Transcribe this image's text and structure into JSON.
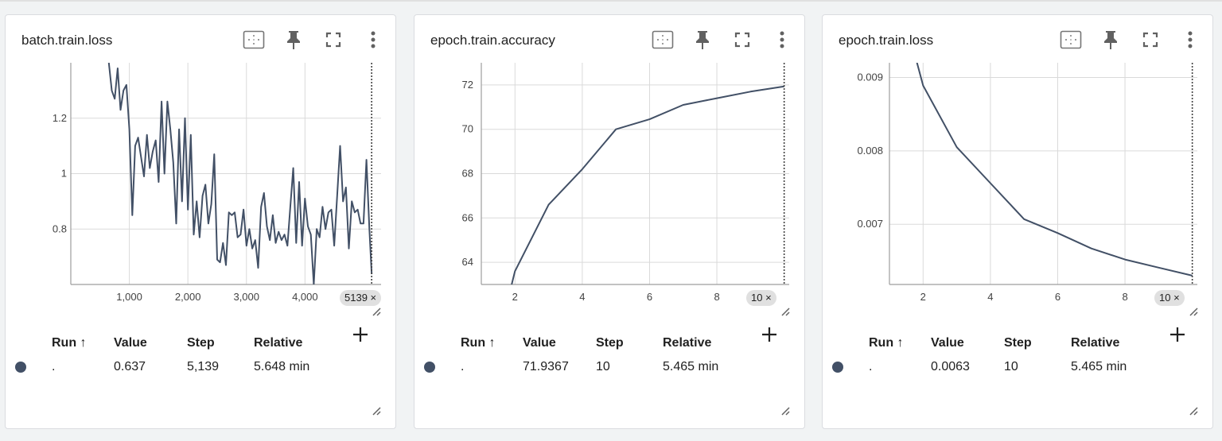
{
  "ui": {
    "step_chip_suffix": " ×",
    "table_headers": {
      "run": "Run ↑",
      "value": "Value",
      "step": "Step",
      "relative": "Relative"
    },
    "colors": {
      "line": "#425066",
      "grid": "#dadada",
      "axis": "#9e9e9e"
    },
    "icons": [
      "fit-domain-icon",
      "pin-icon",
      "fullscreen-icon",
      "more-vert-icon",
      "resize-icon",
      "add-icon"
    ]
  },
  "cards": [
    {
      "title": "batch.train.loss",
      "step_chip": "5139",
      "row": {
        "run": ".",
        "value": "0.637",
        "step": "5,139",
        "relative": "5.648 min"
      }
    },
    {
      "title": "epoch.train.accuracy",
      "step_chip": "10",
      "row": {
        "run": ".",
        "value": "71.9367",
        "step": "10",
        "relative": "5.465 min"
      }
    },
    {
      "title": "epoch.train.loss",
      "step_chip": "10",
      "row": {
        "run": ".",
        "value": "0.0063",
        "step": "10",
        "relative": "5.465 min"
      }
    }
  ],
  "chart_data": [
    {
      "type": "line",
      "title": "batch.train.loss",
      "xlim": [
        0,
        5300
      ],
      "ylim": [
        0.6,
        1.4
      ],
      "x_ticks": [
        1000,
        2000,
        3000,
        4000
      ],
      "x_tick_labels": [
        "1,000",
        "2,000",
        "3,000",
        "4,000"
      ],
      "y_ticks": [
        0.8,
        1.0,
        1.2
      ],
      "y_tick_labels": [
        "0.8",
        "1",
        "1.2"
      ],
      "x": [
        650,
        700,
        750,
        800,
        850,
        900,
        950,
        1000,
        1050,
        1100,
        1150,
        1200,
        1250,
        1300,
        1350,
        1400,
        1450,
        1500,
        1550,
        1600,
        1650,
        1700,
        1750,
        1800,
        1850,
        1900,
        1950,
        2000,
        2050,
        2100,
        2150,
        2200,
        2250,
        2300,
        2350,
        2400,
        2450,
        2500,
        2550,
        2600,
        2650,
        2700,
        2750,
        2800,
        2850,
        2900,
        2950,
        3000,
        3050,
        3100,
        3150,
        3200,
        3250,
        3300,
        3350,
        3400,
        3450,
        3500,
        3550,
        3600,
        3650,
        3700,
        3750,
        3800,
        3850,
        3900,
        3950,
        4000,
        4050,
        4100,
        4150,
        4200,
        4250,
        4300,
        4350,
        4400,
        4450,
        4500,
        4550,
        4600,
        4650,
        4700,
        4750,
        4800,
        4850,
        4900,
        4950,
        5000,
        5050,
        5100,
        5139
      ],
      "y": [
        1.4,
        1.3,
        1.27,
        1.38,
        1.23,
        1.3,
        1.32,
        1.16,
        0.85,
        1.1,
        1.13,
        1.06,
        0.99,
        1.14,
        1.02,
        1.08,
        1.12,
        0.97,
        1.26,
        1.0,
        1.26,
        1.16,
        1.04,
        0.82,
        1.16,
        0.9,
        1.2,
        0.87,
        1.14,
        0.78,
        0.9,
        0.77,
        0.92,
        0.96,
        0.82,
        0.89,
        1.07,
        0.69,
        0.68,
        0.75,
        0.67,
        0.86,
        0.85,
        0.86,
        0.77,
        0.78,
        0.87,
        0.74,
        0.8,
        0.73,
        0.76,
        0.66,
        0.88,
        0.93,
        0.81,
        0.76,
        0.85,
        0.75,
        0.79,
        0.76,
        0.78,
        0.74,
        0.88,
        1.02,
        0.75,
        0.97,
        0.74,
        0.91,
        0.81,
        0.78,
        0.6,
        0.8,
        0.77,
        0.88,
        0.8,
        0.86,
        0.87,
        0.74,
        0.92,
        1.1,
        0.9,
        0.95,
        0.73,
        0.9,
        0.86,
        0.87,
        0.82,
        0.82,
        1.05,
        0.8,
        0.637
      ]
    },
    {
      "type": "line",
      "title": "epoch.train.accuracy",
      "xlim": [
        1,
        10.15
      ],
      "ylim": [
        63,
        73
      ],
      "x_ticks": [
        2,
        4,
        6,
        8
      ],
      "x_tick_labels": [
        "2",
        "4",
        "6",
        "8"
      ],
      "y_ticks": [
        64,
        66,
        68,
        70,
        72
      ],
      "y_tick_labels": [
        "64",
        "66",
        "68",
        "70",
        "72"
      ],
      "x": [
        1,
        2,
        3,
        4,
        5,
        6,
        7,
        8,
        9,
        10
      ],
      "y": [
        57.5,
        63.6,
        66.6,
        68.2,
        70.0,
        70.45,
        71.1,
        71.4,
        71.7,
        71.9367
      ]
    },
    {
      "type": "line",
      "title": "epoch.train.loss",
      "xlim": [
        1,
        10.15
      ],
      "ylim": [
        0.00618,
        0.0092
      ],
      "x_ticks": [
        2,
        4,
        6,
        8
      ],
      "x_tick_labels": [
        "2",
        "4",
        "6",
        "8"
      ],
      "y_ticks": [
        0.007,
        0.008,
        0.009
      ],
      "y_tick_labels": [
        "0.007",
        "0.008",
        "0.009"
      ],
      "x": [
        1,
        2,
        3,
        4,
        5,
        6,
        7,
        8,
        9,
        10
      ],
      "y": [
        0.0106,
        0.00889,
        0.00805,
        0.00756,
        0.00707,
        0.00688,
        0.00667,
        0.00652,
        0.00641,
        0.0063
      ]
    }
  ]
}
